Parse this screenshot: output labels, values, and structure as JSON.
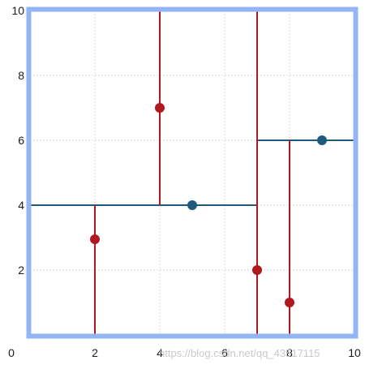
{
  "chart_data": {
    "type": "scatter",
    "title": "",
    "xlabel": "",
    "ylabel": "",
    "xlim": [
      0,
      10
    ],
    "ylim": [
      0,
      10
    ],
    "x_ticks": [
      "0",
      "2",
      "4",
      "6",
      "8",
      "10"
    ],
    "y_ticks": [
      "2",
      "4",
      "6",
      "8",
      "10"
    ],
    "grid": true,
    "frame_color": "#93b5f5",
    "grid_color": "#d9d9d9",
    "split_points": {
      "color": "#1f5a7d",
      "points": [
        {
          "x": 5,
          "y": 4
        },
        {
          "x": 9,
          "y": 6
        }
      ]
    },
    "leaf_points": {
      "color": "#b0191e",
      "points": [
        {
          "x": 2,
          "y": 2.95
        },
        {
          "x": 4,
          "y": 7
        },
        {
          "x": 7,
          "y": 2
        },
        {
          "x": 8,
          "y": 1
        }
      ]
    },
    "split_lines": {
      "horizontal_color": "#1f5a7d",
      "vertical_color": "#b0191e",
      "horizontal": [
        {
          "y": 4,
          "x_from": 0,
          "x_to": 7
        },
        {
          "y": 6,
          "x_from": 7,
          "x_to": 10
        }
      ],
      "vertical": [
        {
          "x": 2,
          "y_from": 0,
          "y_to": 4
        },
        {
          "x": 4,
          "y_from": 4,
          "y_to": 10
        },
        {
          "x": 7,
          "y_from": 0,
          "y_to": 10
        },
        {
          "x": 8,
          "y_from": 0,
          "y_to": 6
        }
      ]
    },
    "watermark": "https://blog.csdn.net/qq_43517115"
  }
}
